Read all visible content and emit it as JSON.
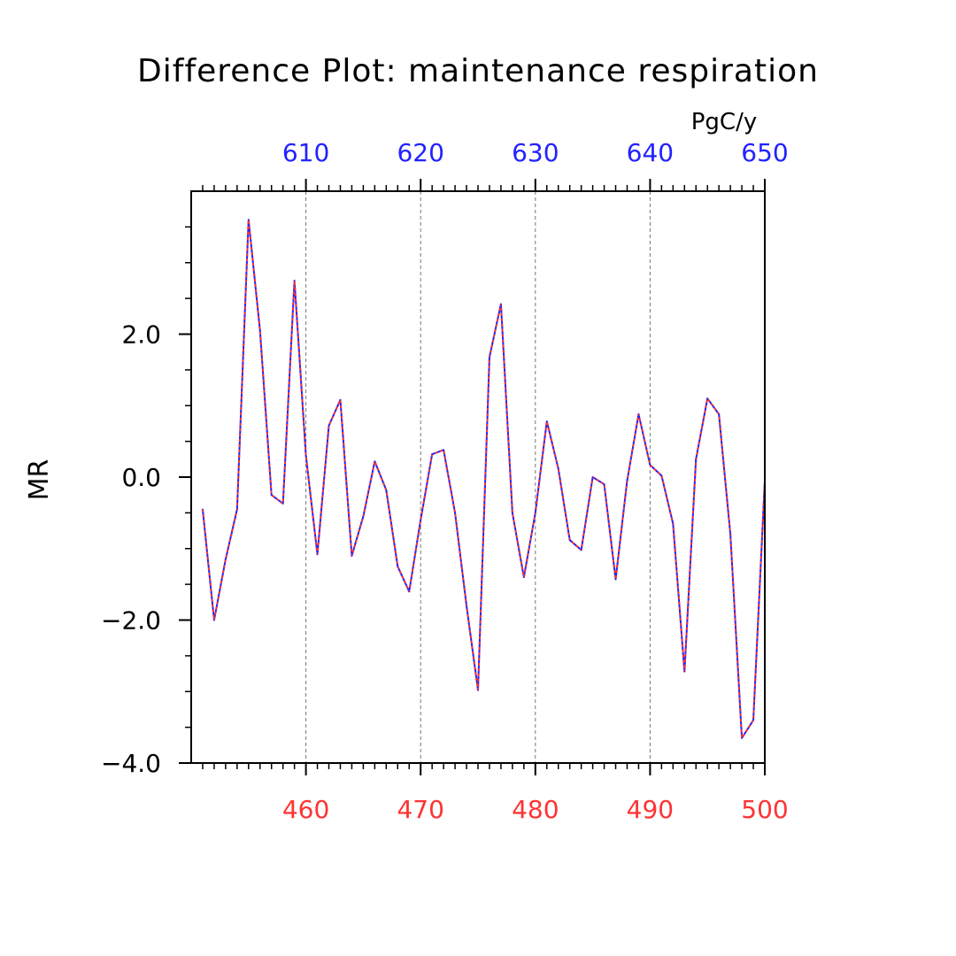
{
  "chart_data": {
    "type": "line",
    "title": "Difference Plot: maintenance respiration",
    "units": "PgC/y",
    "ylabel": "MR",
    "ylim": [
      -4.0,
      4.0
    ],
    "y_ticks": [
      "2.0",
      "0.0",
      "−2.0",
      "−4.0"
    ],
    "x_bottom": {
      "range": [
        450,
        500
      ],
      "ticks": [
        "460",
        "470",
        "480",
        "490",
        "500"
      ],
      "color": "#ff3333"
    },
    "x_top": {
      "range": [
        600,
        650
      ],
      "ticks": [
        "610",
        "620",
        "630",
        "640",
        "650"
      ],
      "color": "#2222ff"
    },
    "grid": "vertical dashed at major x ticks",
    "series": [
      {
        "color_primary": "#2222ff",
        "color_dash": "#ff3333",
        "x": [
          451,
          452,
          453,
          454,
          455,
          456,
          457,
          458,
          459,
          460,
          461,
          462,
          463,
          464,
          465,
          466,
          467,
          468,
          469,
          470,
          471,
          472,
          473,
          474,
          475,
          476,
          477,
          478,
          479,
          480,
          481,
          482,
          483,
          484,
          485,
          486,
          487,
          488,
          489,
          490,
          491,
          492,
          493,
          494,
          495,
          496,
          497,
          498,
          499,
          500
        ],
        "values": [
          -0.45,
          -2.0,
          -1.15,
          -0.45,
          3.6,
          2.05,
          -0.25,
          -0.37,
          2.75,
          0.3,
          -1.08,
          0.72,
          1.08,
          -1.1,
          -0.55,
          0.22,
          -0.18,
          -1.25,
          -1.6,
          -0.6,
          0.32,
          0.38,
          -0.5,
          -1.8,
          -2.98,
          1.68,
          2.42,
          -0.5,
          -1.4,
          -0.5,
          0.78,
          0.12,
          -0.88,
          -1.02,
          0.0,
          -0.1,
          -1.43,
          -0.05,
          0.88,
          0.17,
          0.02,
          -0.65,
          -2.72,
          0.25,
          1.1,
          0.88,
          -0.8,
          -3.65,
          -3.4,
          -0.05
        ]
      }
    ]
  }
}
